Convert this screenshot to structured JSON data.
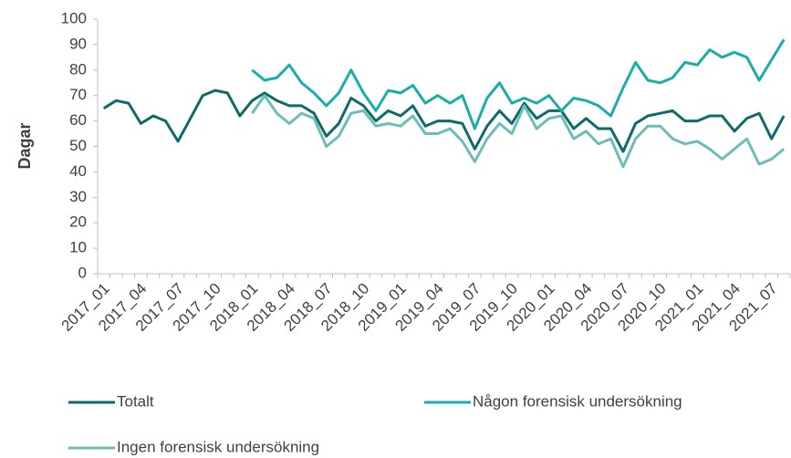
{
  "chart_data": {
    "type": "line",
    "ylabel": "Dagar",
    "categories": [
      "2017_01",
      null,
      null,
      "2017_04",
      null,
      null,
      "2017_07",
      null,
      null,
      "2017_10",
      null,
      null,
      "2018_01",
      null,
      null,
      "2018_04",
      null,
      null,
      "2018_07",
      null,
      null,
      "2018_10",
      null,
      null,
      "2019_01",
      null,
      null,
      "2019_04",
      null,
      null,
      "2019_07",
      null,
      null,
      "2019_10",
      null,
      null,
      "2020_01",
      null,
      null,
      "2020_04",
      null,
      null,
      "2020_07",
      null,
      null,
      "2020_10",
      null,
      null,
      "2021_01",
      null,
      null,
      "2021_04",
      null,
      null,
      "2021_07",
      null
    ],
    "series": [
      {
        "name": "Totalt",
        "color": "#0d6b6a",
        "values": [
          65,
          68,
          67,
          59,
          62,
          60,
          52,
          61,
          70,
          72,
          71,
          62,
          68,
          71,
          68,
          66,
          66,
          63,
          54,
          59,
          69,
          66,
          60,
          64,
          62,
          66,
          58,
          60,
          60,
          59,
          49,
          58,
          64,
          59,
          67,
          61,
          64,
          64,
          57,
          61,
          57,
          57,
          48,
          59,
          62,
          63,
          64,
          60,
          60,
          62,
          62,
          56,
          61,
          63,
          53,
          62
        ]
      },
      {
        "name": "Någon forensisk undersökning",
        "color": "#1aaea9",
        "values": [
          null,
          null,
          null,
          null,
          null,
          null,
          null,
          null,
          null,
          null,
          null,
          null,
          80,
          76,
          77,
          82,
          75,
          71,
          66,
          71,
          80,
          71,
          64,
          72,
          71,
          74,
          67,
          70,
          67,
          70,
          57,
          69,
          75,
          67,
          69,
          67,
          70,
          64,
          69,
          68,
          66,
          62,
          73,
          83,
          76,
          75,
          77,
          83,
          82,
          88,
          85,
          87,
          85,
          76,
          84,
          92
        ]
      },
      {
        "name": "Ingen forensisk undersökning",
        "color": "#6cbdb8",
        "values": [
          null,
          null,
          null,
          null,
          null,
          null,
          null,
          null,
          null,
          null,
          null,
          null,
          63,
          70,
          63,
          59,
          63,
          61,
          50,
          54,
          63,
          64,
          58,
          59,
          58,
          62,
          55,
          55,
          57,
          52,
          44,
          53,
          59,
          55,
          66,
          57,
          61,
          62,
          53,
          56,
          51,
          53,
          42,
          53,
          58,
          58,
          53,
          51,
          52,
          49,
          45,
          49,
          53,
          43,
          45,
          49
        ]
      }
    ],
    "ylim": [
      0,
      100
    ],
    "yticks": [
      0,
      10,
      20,
      30,
      40,
      50,
      60,
      70,
      80,
      90,
      100
    ],
    "grid": false
  }
}
